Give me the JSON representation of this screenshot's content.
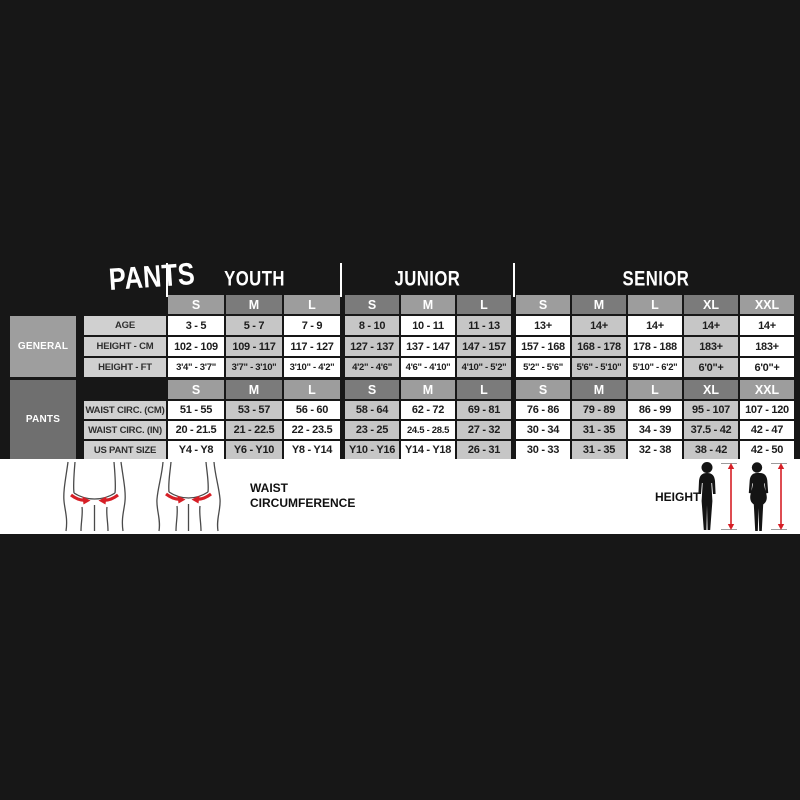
{
  "chart_data": {
    "type": "table",
    "title": "PANTS",
    "column_groups": [
      {
        "label": "YOUTH",
        "sizes": [
          "S",
          "M",
          "L"
        ]
      },
      {
        "label": "JUNIOR",
        "sizes": [
          "S",
          "M",
          "L"
        ]
      },
      {
        "label": "SENIOR",
        "sizes": [
          "S",
          "M",
          "L",
          "XL",
          "XXL"
        ]
      }
    ],
    "sections": [
      {
        "label": "GENERAL",
        "rows": [
          {
            "label": "AGE",
            "values": [
              "3 - 5",
              "5 - 7",
              "7 - 9",
              "8 - 10",
              "10 - 11",
              "11 - 13",
              "13+",
              "14+",
              "14+",
              "14+",
              "14+"
            ]
          },
          {
            "label": "HEIGHT - CM",
            "values": [
              "102 - 109",
              "109 - 117",
              "117 - 127",
              "127 - 137",
              "137 - 147",
              "147 - 157",
              "157 - 168",
              "168 - 178",
              "178 - 188",
              "183+",
              "183+"
            ]
          },
          {
            "label": "HEIGHT - FT",
            "values": [
              "3'4\" - 3'7\"",
              "3'7\" - 3'10\"",
              "3'10\" - 4'2\"",
              "4'2\" - 4'6\"",
              "4'6\" - 4'10\"",
              "4'10\" - 5'2\"",
              "5'2\" - 5'6\"",
              "5'6\" - 5'10\"",
              "5'10\" - 6'2\"",
              "6'0\"+",
              "6'0\"+"
            ]
          }
        ]
      },
      {
        "label": "PANTS",
        "rows": [
          {
            "label": "WAIST CIRC. (CM)",
            "values": [
              "51 - 55",
              "53 - 57",
              "56 - 60",
              "58 - 64",
              "62 - 72",
              "69 - 81",
              "76 - 86",
              "79 - 89",
              "86 - 99",
              "95 - 107",
              "107 - 120"
            ]
          },
          {
            "label": "WAIST CIRC. (IN)",
            "values": [
              "20 - 21.5",
              "21 - 22.5",
              "22 - 23.5",
              "23 - 25",
              "24.5 - 28.5",
              "27 - 32",
              "30 - 34",
              "31 - 35",
              "34 - 39",
              "37.5 - 42",
              "42 - 47"
            ]
          },
          {
            "label": "US PANT SIZE",
            "values": [
              "Y4 - Y8",
              "Y6 - Y10",
              "Y8 - Y14",
              "Y10 - Y16",
              "Y14 - Y18",
              "26 - 31",
              "30 - 33",
              "31 - 35",
              "32 - 38",
              "38 - 42",
              "42 - 50"
            ]
          }
        ]
      }
    ]
  },
  "legend": {
    "waist_line1": "WAIST",
    "waist_line2": "CIRCUMFERENCE",
    "height_label": "HEIGHT",
    "icons": [
      "waist-figure-male-icon",
      "waist-figure-female-icon",
      "height-silhouette-male-icon",
      "height-silhouette-female-icon"
    ]
  },
  "colors": {
    "background": "#171717",
    "cell_white": "#ffffff",
    "cell_gray": "#c6c6c6",
    "header_light": "#9d9d9d",
    "header_dark": "#7b7b7b",
    "row_label_bg": "#d0d0d0",
    "general_box": "#9e9e9e",
    "pants_box": "#6f6f6f",
    "accent_red": "#d61f26",
    "text_dark": "#1d1d1d"
  }
}
